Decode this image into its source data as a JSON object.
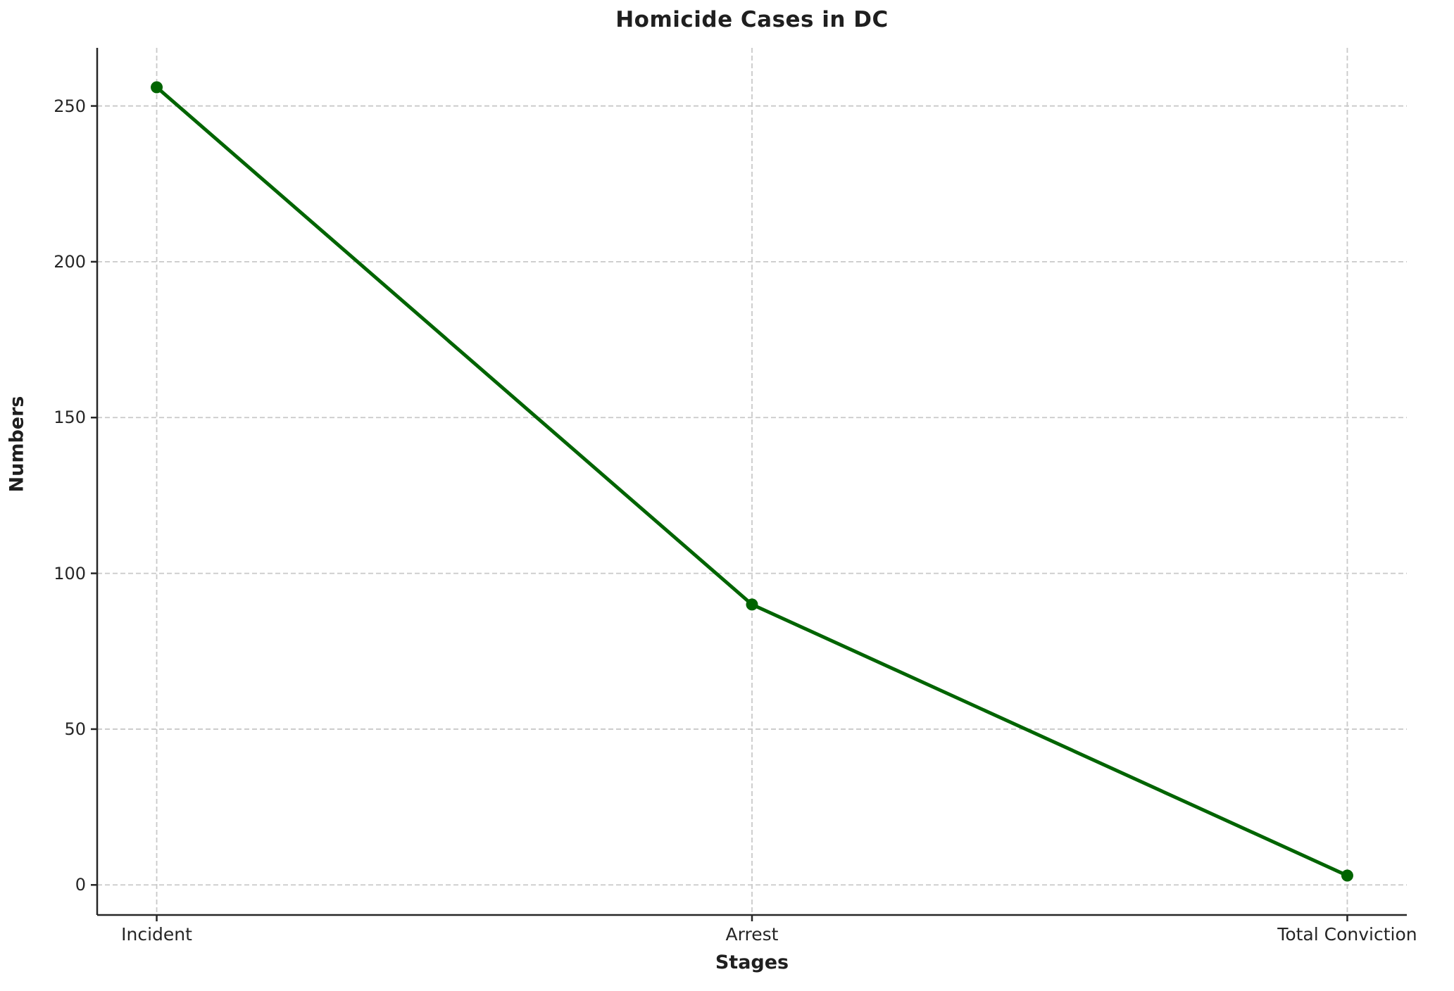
{
  "chart_data": {
    "type": "line",
    "title": "Homicide Cases in DC",
    "xlabel": "Stages",
    "ylabel": "Numbers",
    "categories": [
      "Incident",
      "Arrest",
      "Total Conviction"
    ],
    "values": [
      256,
      90,
      3
    ],
    "yticks": [
      0,
      50,
      100,
      150,
      200,
      250
    ],
    "ylim_padding_fraction": 0.05,
    "grid": "dashed",
    "legend": "none",
    "colors": {
      "line": "#006400",
      "marker": "#006400",
      "grid": "#c9c9c9",
      "spine": "#262626",
      "text": "#1f1f1f",
      "tick_text": "#262626",
      "background": "#ffffff"
    }
  }
}
